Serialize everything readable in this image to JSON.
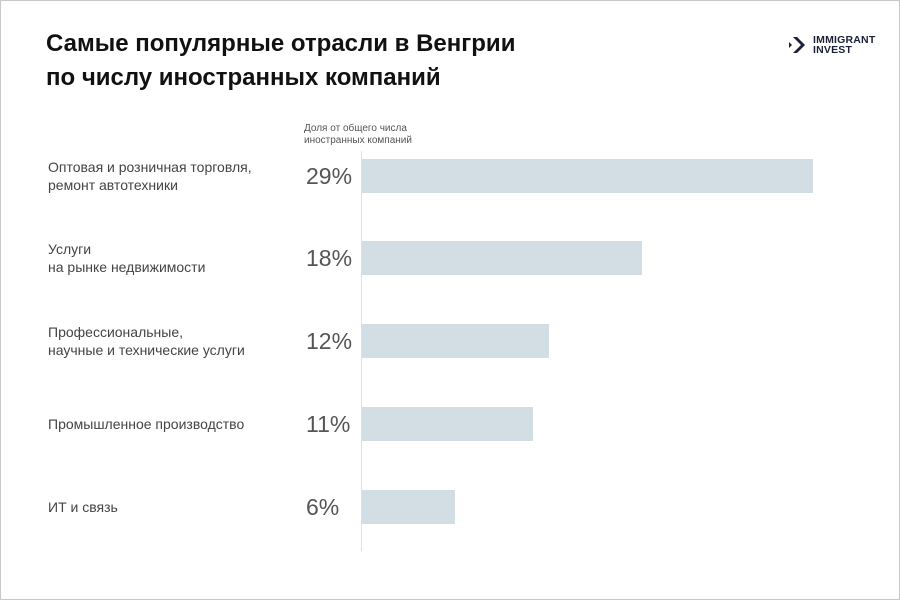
{
  "logo": {
    "line1": "IMMIGRANT",
    "line2": "INVEST",
    "color": "#1a1f3a"
  },
  "chart_data": {
    "type": "bar",
    "orientation": "horizontal",
    "title_line1": "Самые популярные отрасли в Венгрии",
    "title_line2": "по числу иностранных компаний",
    "value_header_line1": "Доля от общего числа",
    "value_header_line2": "иностранных компаний",
    "categories": [
      [
        "Оптовая и розничная торговля,",
        "ремонт автотехники"
      ],
      [
        "Услуги",
        "на рынке недвижимости"
      ],
      [
        "Профессиональные,",
        "научные и технические услуги"
      ],
      [
        "Промышленное производство"
      ],
      [
        "ИТ и связь"
      ]
    ],
    "values": [
      29,
      18,
      12,
      11,
      6
    ],
    "value_labels": [
      "29%",
      "18%",
      "12%",
      "11%",
      "6%"
    ],
    "unit": "%",
    "bar_color": "#d3dee4",
    "grid": false
  }
}
